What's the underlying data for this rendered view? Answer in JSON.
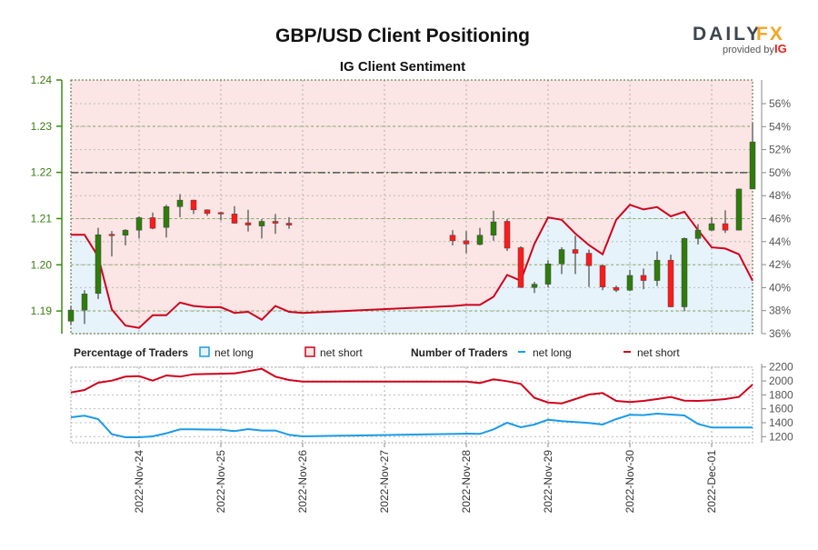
{
  "header": {
    "title": "GBP/USD Client Positioning",
    "subtitle": "IG Client Sentiment",
    "logo_text": "DAILYFX",
    "logo_sub": "provided by IG"
  },
  "legend": {
    "pct_title": "Percentage of Traders",
    "pct_long": "net long",
    "pct_short": "net short",
    "num_title": "Number of Traders",
    "num_long": "net long",
    "num_short": "net short"
  },
  "colors": {
    "long": "#1a9be6",
    "short": "#d0021b",
    "long_fill": "#e6f3fb",
    "short_fill": "#fbe5e5",
    "bull": "#2e7d0a",
    "bear": "#ff1a1a",
    "price_axis": "#3a8a10"
  },
  "chart_data": [
    {
      "type": "candlestick+line",
      "title": "GBP/USD Client Positioning",
      "subtitle": "IG Client Sentiment",
      "price_axis": {
        "ticks": [
          "1.19",
          "1.20",
          "1.21",
          "1.22",
          "1.23",
          "1.24"
        ],
        "ylim": [
          1.1851,
          1.24
        ]
      },
      "pct_axis": {
        "ticks": [
          "36%",
          "38%",
          "40%",
          "42%",
          "44%",
          "46%",
          "48%",
          "50%",
          "52%",
          "54%",
          "56%"
        ],
        "ylim": [
          36,
          58
        ]
      },
      "x_ticks": [
        "2022-Nov-24",
        "2022-Nov-25",
        "2022-Nov-26",
        "2022-Nov-27",
        "2022-Nov-28",
        "2022-Nov-29",
        "2022-Nov-30",
        "2022-Dec-01"
      ],
      "reference_line_pct": 50,
      "candles_ohlc": [
        [
          "2022-11-23 04:00",
          1.1878,
          1.1911,
          1.1871,
          1.1902
        ],
        [
          "2022-11-23 08:00",
          1.1902,
          1.1945,
          1.1872,
          1.1937
        ],
        [
          "2022-11-23 12:00",
          1.1938,
          1.208,
          1.1926,
          1.2065
        ],
        [
          "2022-11-23 16:00",
          1.2066,
          1.2073,
          1.2018,
          1.2064
        ],
        [
          "2022-11-23 20:00",
          1.2064,
          1.2077,
          1.2042,
          1.2075
        ],
        [
          "2022-11-24 00:00",
          1.2075,
          1.2105,
          1.2057,
          1.2102
        ],
        [
          "2022-11-24 04:00",
          1.2102,
          1.2113,
          1.2077,
          1.2079
        ],
        [
          "2022-11-24 08:00",
          1.2081,
          1.213,
          1.2059,
          1.2126
        ],
        [
          "2022-11-24 12:00",
          1.2126,
          1.2153,
          1.2103,
          1.214
        ],
        [
          "2022-11-24 16:00",
          1.214,
          1.2141,
          1.211,
          1.2119
        ],
        [
          "2022-11-24 20:00",
          1.2119,
          1.212,
          1.2106,
          1.2111
        ],
        [
          "2022-11-25 00:00",
          1.2113,
          1.2115,
          1.2096,
          1.211
        ],
        [
          "2022-11-25 04:00",
          1.211,
          1.2127,
          1.2089,
          1.209
        ],
        [
          "2022-11-25 08:00",
          1.2091,
          1.2119,
          1.2072,
          1.2086
        ],
        [
          "2022-11-25 12:00",
          1.2084,
          1.2099,
          1.2057,
          1.2094
        ],
        [
          "2022-11-25 16:00",
          1.2094,
          1.211,
          1.2067,
          1.209
        ],
        [
          "2022-11-25 20:00",
          1.209,
          1.2103,
          1.2078,
          1.2086
        ],
        [
          "2022-11-27 20:00",
          1.2064,
          1.2075,
          1.2042,
          1.2052
        ],
        [
          "2022-11-28 00:00",
          1.2052,
          1.2073,
          1.2025,
          1.2045
        ],
        [
          "2022-11-28 04:00",
          1.2044,
          1.208,
          1.2042,
          1.2064
        ],
        [
          "2022-11-28 08:00",
          1.2064,
          1.2117,
          1.2052,
          1.2093
        ],
        [
          "2022-11-28 12:00",
          1.2094,
          1.2099,
          1.203,
          1.2036
        ],
        [
          "2022-11-28 16:00",
          1.2037,
          1.204,
          1.195,
          1.1951
        ],
        [
          "2022-11-28 20:00",
          1.1951,
          1.1963,
          1.1939,
          1.1958
        ],
        [
          "2022-11-29 00:00",
          1.1958,
          1.201,
          1.1951,
          1.2002
        ],
        [
          "2022-11-29 04:00",
          1.2002,
          1.2038,
          1.198,
          1.2033
        ],
        [
          "2022-11-29 08:00",
          1.2033,
          1.2063,
          1.198,
          1.2025
        ],
        [
          "2022-11-29 12:00",
          1.2025,
          1.2033,
          1.1952,
          1.1998
        ],
        [
          "2022-11-29 16:00",
          1.1998,
          1.2001,
          1.1945,
          1.1952
        ],
        [
          "2022-11-29 20:00",
          1.1951,
          1.1955,
          1.1941,
          1.1945
        ],
        [
          "2022-11-30 00:00",
          1.1945,
          1.1989,
          1.1943,
          1.1977
        ],
        [
          "2022-11-30 04:00",
          1.1977,
          1.1992,
          1.1947,
          1.1966
        ],
        [
          "2022-11-30 08:00",
          1.1966,
          1.2029,
          1.1954,
          1.201
        ],
        [
          "2022-11-30 12:00",
          1.201,
          1.2022,
          1.1908,
          1.1909
        ],
        [
          "2022-11-30 16:00",
          1.1909,
          1.2059,
          1.19,
          1.2057
        ],
        [
          "2022-11-30 20:00",
          1.2057,
          1.2088,
          1.2044,
          1.2075
        ],
        [
          "2022-12-01 00:00",
          1.2075,
          1.2103,
          1.2073,
          1.2089
        ],
        [
          "2022-12-01 04:00",
          1.2089,
          1.2118,
          1.2069,
          1.2075
        ],
        [
          "2022-12-01 08:00",
          1.2075,
          1.2165,
          1.2075,
          1.2164
        ],
        [
          "2022-12-01 12:00",
          1.2164,
          1.2307,
          1.2164,
          1.2266
        ]
      ],
      "net_long_pct": [
        [
          "2022-11-23 04:00",
          44.6
        ],
        [
          "2022-11-23 08:00",
          44.6
        ],
        [
          "2022-11-23 12:00",
          42.7
        ],
        [
          "2022-11-23 16:00",
          38.1
        ],
        [
          "2022-11-23 20:00",
          36.7
        ],
        [
          "2022-11-24 00:00",
          36.5
        ],
        [
          "2022-11-24 04:00",
          37.6
        ],
        [
          "2022-11-24 08:00",
          37.6
        ],
        [
          "2022-11-24 12:00",
          38.7
        ],
        [
          "2022-11-24 16:00",
          38.4
        ],
        [
          "2022-11-24 20:00",
          38.3
        ],
        [
          "2022-11-25 00:00",
          38.3
        ],
        [
          "2022-11-25 04:00",
          37.8
        ],
        [
          "2022-11-25 08:00",
          37.9
        ],
        [
          "2022-11-25 12:00",
          37.2
        ],
        [
          "2022-11-25 16:00",
          38.4
        ],
        [
          "2022-11-25 20:00",
          37.9
        ],
        [
          "2022-11-26 00:00",
          37.8
        ],
        [
          "2022-11-27 20:00",
          38.4
        ],
        [
          "2022-11-28 00:00",
          38.5
        ],
        [
          "2022-11-28 04:00",
          38.5
        ],
        [
          "2022-11-28 08:00",
          39.2
        ],
        [
          "2022-11-28 12:00",
          41.1
        ],
        [
          "2022-11-28 16:00",
          40.6
        ],
        [
          "2022-11-28 20:00",
          43.8
        ],
        [
          "2022-11-29 00:00",
          46.1
        ],
        [
          "2022-11-29 04:00",
          45.9
        ],
        [
          "2022-11-29 08:00",
          44.7
        ],
        [
          "2022-11-29 12:00",
          43.7
        ],
        [
          "2022-11-29 16:00",
          42.9
        ],
        [
          "2022-11-29 20:00",
          45.9
        ],
        [
          "2022-11-30 00:00",
          47.2
        ],
        [
          "2022-11-30 04:00",
          46.8
        ],
        [
          "2022-11-30 08:00",
          47.0
        ],
        [
          "2022-11-30 12:00",
          46.2
        ],
        [
          "2022-11-30 16:00",
          46.6
        ],
        [
          "2022-11-30 20:00",
          45.0
        ],
        [
          "2022-12-01 00:00",
          43.5
        ],
        [
          "2022-12-01 04:00",
          43.4
        ],
        [
          "2022-12-01 08:00",
          42.9
        ],
        [
          "2022-12-01 12:00",
          40.6
        ]
      ]
    },
    {
      "type": "line",
      "title": "Number of Traders",
      "y_ticks": [
        "1200",
        "1400",
        "1600",
        "1800",
        "2000",
        "2200"
      ],
      "ylim": [
        1150,
        2200
      ],
      "series": [
        {
          "name": "net long",
          "values": [
            [
              "2022-11-23 04:00",
              1478
            ],
            [
              "2022-11-23 08:00",
              1500
            ],
            [
              "2022-11-23 12:00",
              1452
            ],
            [
              "2022-11-23 16:00",
              1235
            ],
            [
              "2022-11-23 20:00",
              1191
            ],
            [
              "2022-11-24 00:00",
              1191
            ],
            [
              "2022-11-24 04:00",
              1204
            ],
            [
              "2022-11-24 08:00",
              1248
            ],
            [
              "2022-11-24 12:00",
              1304
            ],
            [
              "2022-11-24 16:00",
              1304
            ],
            [
              "2022-11-24 20:00",
              1302
            ],
            [
              "2022-11-25 00:00",
              1300
            ],
            [
              "2022-11-25 04:00",
              1278
            ],
            [
              "2022-11-25 08:00",
              1309
            ],
            [
              "2022-11-25 12:00",
              1287
            ],
            [
              "2022-11-25 16:00",
              1287
            ],
            [
              "2022-11-25 20:00",
              1226
            ],
            [
              "2022-11-26 00:00",
              1204
            ],
            [
              "2022-11-28 00:00",
              1243
            ],
            [
              "2022-11-28 04:00",
              1239
            ],
            [
              "2022-11-28 08:00",
              1304
            ],
            [
              "2022-11-28 12:00",
              1400
            ],
            [
              "2022-11-28 16:00",
              1335
            ],
            [
              "2022-11-28 20:00",
              1374
            ],
            [
              "2022-11-29 00:00",
              1443
            ],
            [
              "2022-11-29 04:00",
              1422
            ],
            [
              "2022-11-29 08:00",
              1409
            ],
            [
              "2022-11-29 12:00",
              1396
            ],
            [
              "2022-11-29 16:00",
              1374
            ],
            [
              "2022-11-29 20:00",
              1452
            ],
            [
              "2022-11-30 00:00",
              1513
            ],
            [
              "2022-11-30 04:00",
              1509
            ],
            [
              "2022-11-30 08:00",
              1530
            ],
            [
              "2022-11-30 12:00",
              1517
            ],
            [
              "2022-11-30 16:00",
              1504
            ],
            [
              "2022-11-30 20:00",
              1383
            ],
            [
              "2022-12-01 00:00",
              1330
            ],
            [
              "2022-12-01 04:00",
              1330
            ],
            [
              "2022-12-01 08:00",
              1330
            ],
            [
              "2022-12-01 12:00",
              1330
            ]
          ]
        },
        {
          "name": "net short",
          "values": [
            [
              "2022-11-23 04:00",
              1835
            ],
            [
              "2022-11-23 08:00",
              1870
            ],
            [
              "2022-11-23 12:00",
              1974
            ],
            [
              "2022-11-23 16:00",
              2004
            ],
            [
              "2022-11-23 20:00",
              2061
            ],
            [
              "2022-11-24 00:00",
              2070
            ],
            [
              "2022-11-24 04:00",
              2004
            ],
            [
              "2022-11-24 08:00",
              2078
            ],
            [
              "2022-11-24 12:00",
              2061
            ],
            [
              "2022-11-24 16:00",
              2096
            ],
            [
              "2022-11-24 20:00",
              2100
            ],
            [
              "2022-11-25 00:00",
              2104
            ],
            [
              "2022-11-25 04:00",
              2109
            ],
            [
              "2022-11-25 08:00",
              2140
            ],
            [
              "2022-11-25 12:00",
              2174
            ],
            [
              "2022-11-25 16:00",
              2061
            ],
            [
              "2022-11-25 20:00",
              2013
            ],
            [
              "2022-11-26 00:00",
              1991
            ],
            [
              "2022-11-28 00:00",
              1991
            ],
            [
              "2022-11-28 04:00",
              1970
            ],
            [
              "2022-11-28 08:00",
              2022
            ],
            [
              "2022-11-28 12:00",
              1996
            ],
            [
              "2022-11-28 16:00",
              1957
            ],
            [
              "2022-11-28 20:00",
              1757
            ],
            [
              "2022-11-29 00:00",
              1691
            ],
            [
              "2022-11-29 04:00",
              1678
            ],
            [
              "2022-11-29 08:00",
              1739
            ],
            [
              "2022-11-29 12:00",
              1804
            ],
            [
              "2022-11-29 16:00",
              1826
            ],
            [
              "2022-11-29 20:00",
              1713
            ],
            [
              "2022-11-30 00:00",
              1696
            ],
            [
              "2022-11-30 04:00",
              1713
            ],
            [
              "2022-11-30 08:00",
              1739
            ],
            [
              "2022-11-30 12:00",
              1770
            ],
            [
              "2022-11-30 16:00",
              1717
            ],
            [
              "2022-11-30 20:00",
              1713
            ],
            [
              "2022-12-01 00:00",
              1722
            ],
            [
              "2022-12-01 04:00",
              1739
            ],
            [
              "2022-12-01 08:00",
              1770
            ],
            [
              "2022-12-01 12:00",
              1948
            ]
          ]
        }
      ]
    }
  ]
}
